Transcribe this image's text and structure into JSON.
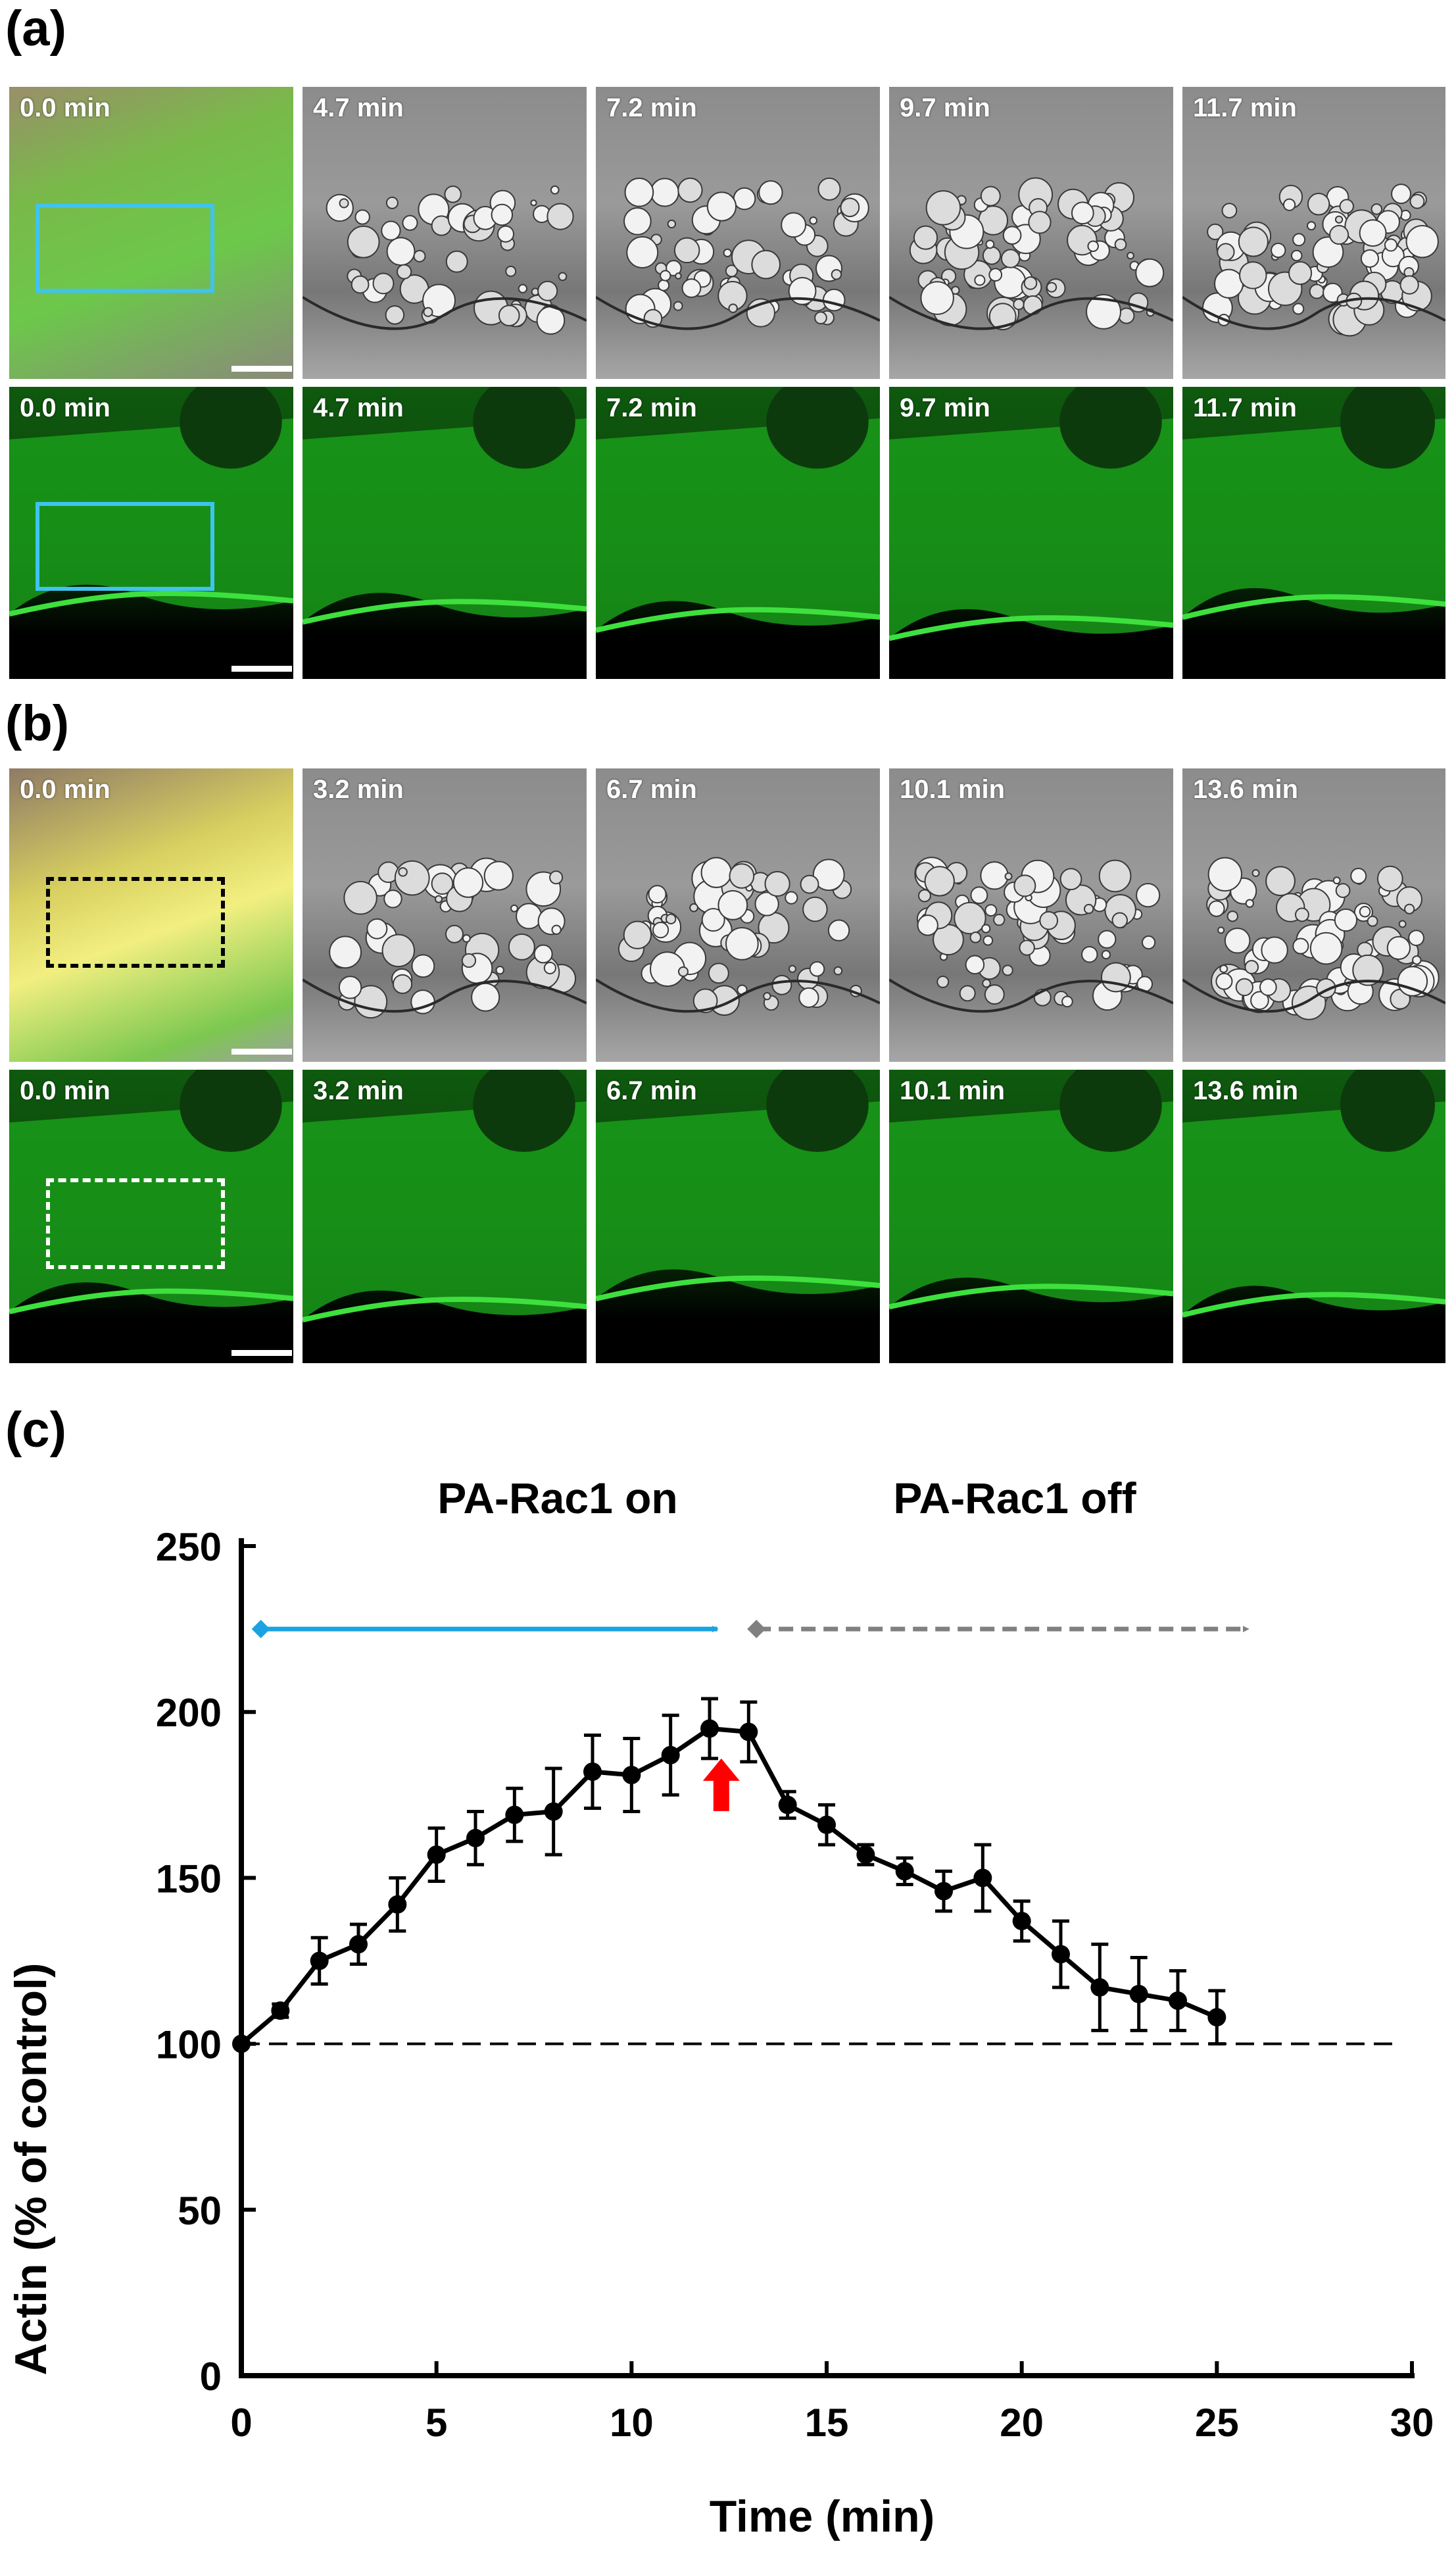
{
  "panel_labels": {
    "a": "(a)",
    "b": "(b)",
    "c": "(c)"
  },
  "rows": [
    {
      "id": "a-phase",
      "times": [
        "0.0 min",
        "4.7 min",
        "7.2 min",
        "9.7 min",
        "11.7 min"
      ]
    },
    {
      "id": "a-fluor",
      "times": [
        "0.0 min",
        "4.7 min",
        "7.2 min",
        "9.7 min",
        "11.7 min"
      ]
    },
    {
      "id": "b-phase",
      "times": [
        "0.0 min",
        "3.2 min",
        "6.7 min",
        "10.1 min",
        "13.6 min"
      ]
    },
    {
      "id": "b-fluor",
      "times": [
        "0.0 min",
        "3.2 min",
        "6.7 min",
        "10.1 min",
        "13.6 min"
      ]
    }
  ],
  "colors": {
    "roi_cyan": "#3fc3f0",
    "roi_black": "#000000",
    "roi_white": "#ffffff",
    "fluor_green": "#1fb41f",
    "arrow_red": "#ff0000",
    "on_arrow": "#1aa3e0",
    "off_arrow": "#808080"
  },
  "chart_data": {
    "type": "line",
    "xlabel": "Time (min)",
    "ylabel": "Actin (% of control)",
    "xlim": [
      0,
      30
    ],
    "ylim": [
      0,
      250
    ],
    "xticks": [
      0,
      5,
      10,
      15,
      20,
      25,
      30
    ],
    "yticks": [
      0,
      50,
      100,
      150,
      200,
      250
    ],
    "x": [
      0,
      1,
      2,
      3,
      4,
      5,
      6,
      7,
      8,
      9,
      10,
      11,
      12,
      13,
      14,
      15,
      16,
      17,
      18,
      19,
      20,
      21,
      22,
      23,
      24,
      25
    ],
    "y": [
      100,
      110,
      125,
      130,
      142,
      157,
      162,
      169,
      170,
      182,
      181,
      187,
      195,
      194,
      172,
      166,
      157,
      152,
      146,
      150,
      137,
      127,
      117,
      115,
      113,
      108
    ],
    "err": [
      0,
      2,
      7,
      6,
      8,
      8,
      8,
      8,
      13,
      11,
      11,
      12,
      9,
      9,
      4,
      6,
      3,
      4,
      6,
      10,
      6,
      10,
      13,
      11,
      9,
      8
    ],
    "baseline": 100,
    "annotations": {
      "on_label": "PA-Rac1 on",
      "off_label": "PA-Rac1 off",
      "on_range": [
        0.5,
        12.2
      ],
      "off_range": [
        13.2,
        25.8
      ],
      "arrow_y": 225,
      "red_arrow_x": 12.3
    }
  }
}
